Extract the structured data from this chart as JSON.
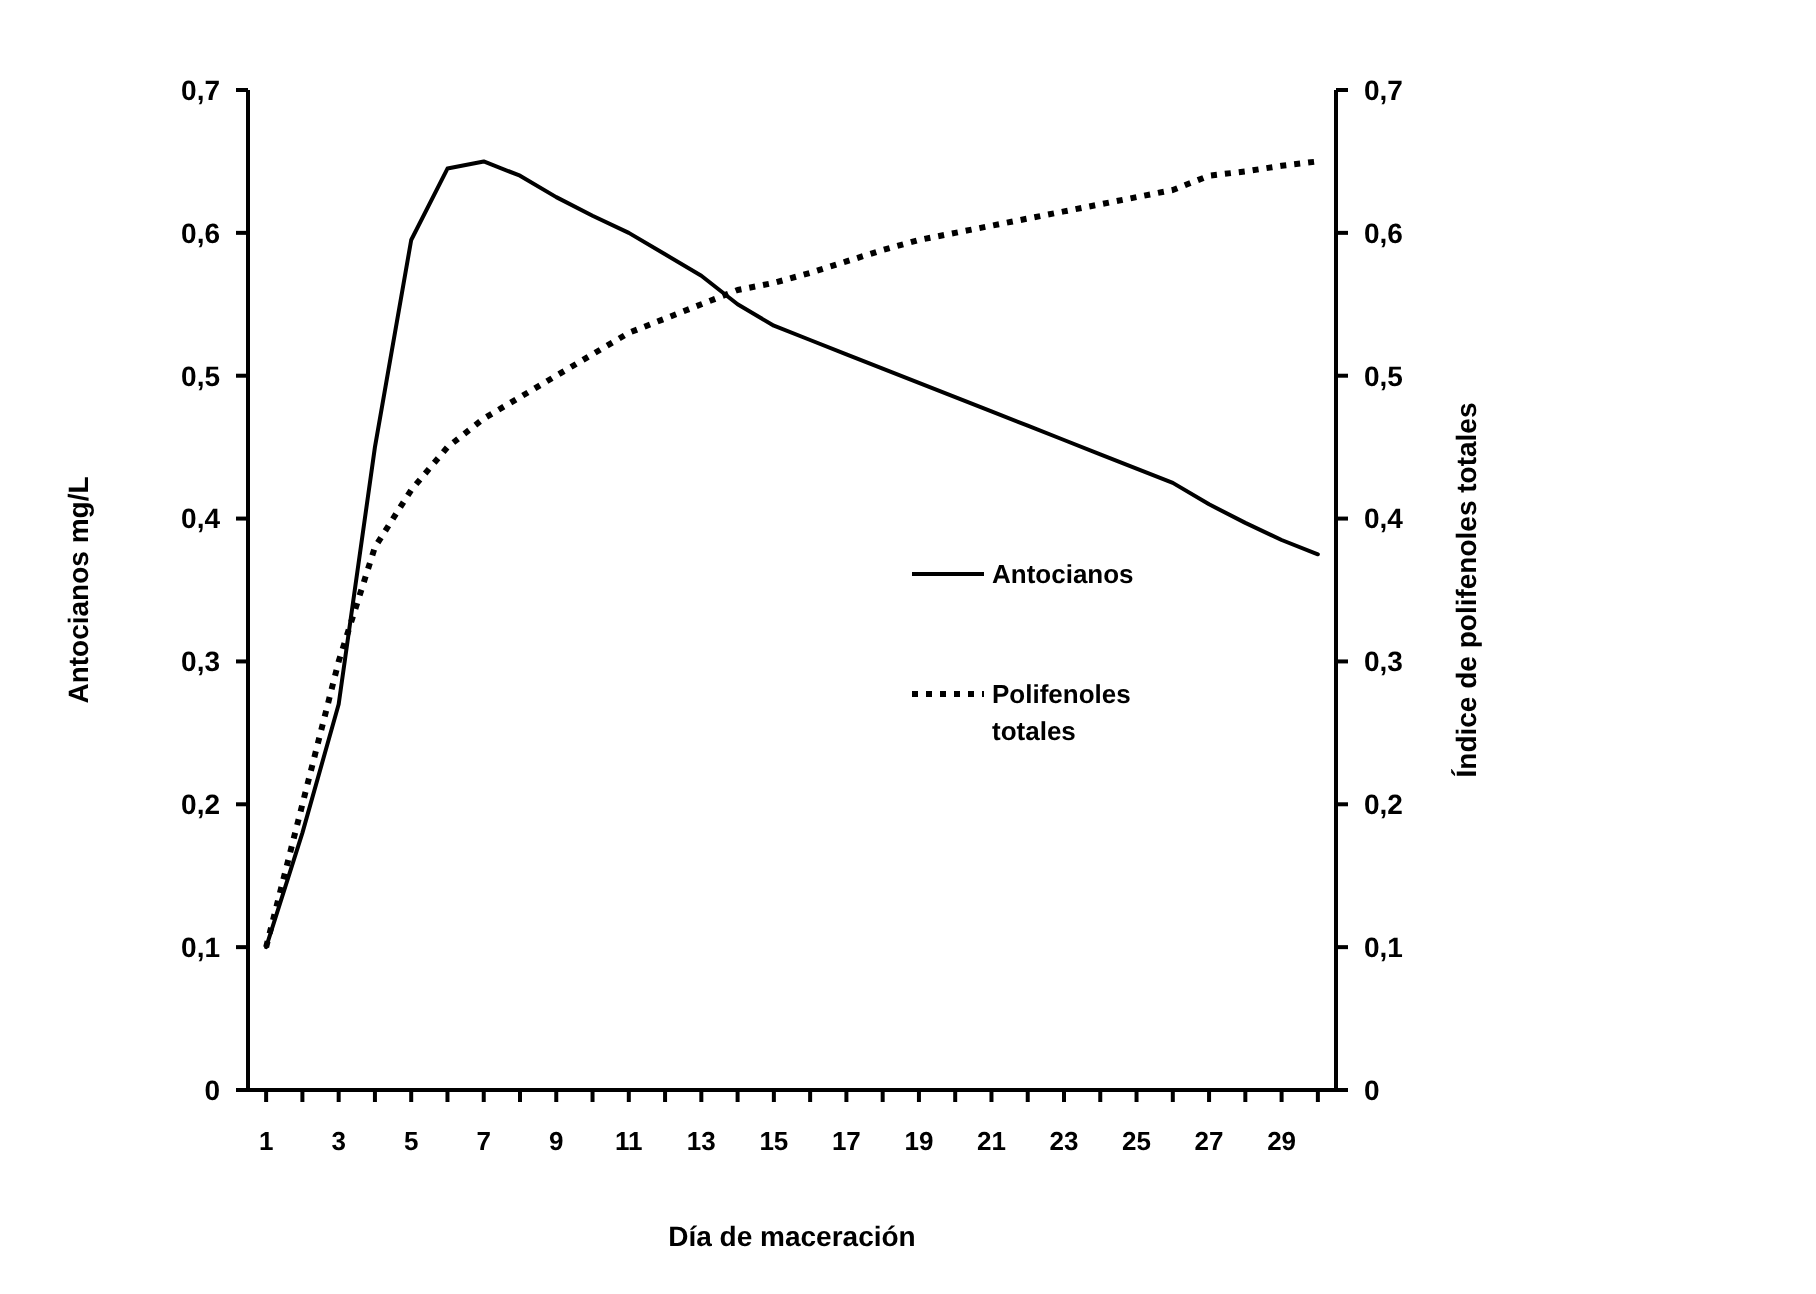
{
  "chart_data": {
    "type": "line",
    "xlabel": "Día de maceración",
    "ylabel": "Antocianos mg/L",
    "y2label": "Índice de polifenoles totales",
    "x": [
      1,
      2,
      3,
      4,
      5,
      6,
      7,
      8,
      9,
      10,
      11,
      12,
      13,
      14,
      15,
      16,
      17,
      18,
      19,
      20,
      21,
      22,
      23,
      24,
      25,
      26,
      27,
      28,
      29,
      30
    ],
    "xlim": [
      0.5,
      30.5
    ],
    "xticks": [
      1,
      {
        "value": 2,
        "label": null
      },
      3,
      {
        "value": 4,
        "label": null
      },
      5,
      {
        "value": 6,
        "label": null
      },
      7,
      {
        "value": 8,
        "label": null
      },
      9,
      {
        "value": 10,
        "label": null
      },
      11,
      {
        "value": 12,
        "label": null
      },
      13,
      {
        "value": 14,
        "label": null
      },
      15,
      {
        "value": 16,
        "label": null
      },
      17,
      {
        "value": 18,
        "label": null
      },
      19,
      {
        "value": 20,
        "label": null
      },
      21,
      {
        "value": 22,
        "label": null
      },
      23,
      {
        "value": 24,
        "label": null
      },
      25,
      {
        "value": 26,
        "label": null
      },
      27,
      {
        "value": 28,
        "label": null
      },
      29,
      {
        "value": 30,
        "label": null
      }
    ],
    "ylim": [
      0,
      0.7
    ],
    "yticks": [
      0,
      {
        "value": 0.1,
        "label": "0,1"
      },
      {
        "value": 0.2,
        "label": "0,2"
      },
      {
        "value": 0.3,
        "label": "0,3"
      },
      {
        "value": 0.4,
        "label": "0,4"
      },
      {
        "value": 0.5,
        "label": "0,5"
      },
      {
        "value": 0.6,
        "label": "0,6"
      },
      {
        "value": 0.7,
        "label": "0,7"
      }
    ],
    "y2lim": [
      0,
      0.7
    ],
    "y2ticks": [
      0,
      {
        "value": 0.1,
        "label": "0,1"
      },
      {
        "value": 0.2,
        "label": "0,2"
      },
      {
        "value": 0.3,
        "label": "0,3"
      },
      {
        "value": 0.4,
        "label": "0,4"
      },
      {
        "value": 0.5,
        "label": "0,5"
      },
      {
        "value": 0.6,
        "label": "0,6"
      },
      {
        "value": 0.7,
        "label": "0,7"
      }
    ],
    "grid": false,
    "legend": "right",
    "series": [
      {
        "name": "Antocianos",
        "color": "#000000",
        "line_style": "solid",
        "values": [
          0.1,
          0.18,
          0.27,
          0.45,
          0.595,
          0.645,
          0.65,
          0.64,
          0.625,
          0.612,
          0.6,
          0.585,
          0.57,
          0.55,
          0.535,
          0.525,
          0.515,
          0.505,
          0.495,
          0.485,
          0.475,
          0.465,
          0.455,
          0.445,
          0.435,
          0.425,
          0.41,
          0.397,
          0.385,
          0.375
        ]
      },
      {
        "name": "Polifenoles totales",
        "color": "#000000",
        "line_style": "dotted",
        "values": [
          0.1,
          0.2,
          0.3,
          0.38,
          0.42,
          0.45,
          0.47,
          0.485,
          0.5,
          0.515,
          0.53,
          0.54,
          0.55,
          0.56,
          0.565,
          0.572,
          0.58,
          0.588,
          0.595,
          0.6,
          0.605,
          0.61,
          0.615,
          0.62,
          0.625,
          0.63,
          0.64,
          0.643,
          0.647,
          0.65
        ]
      }
    ]
  }
}
